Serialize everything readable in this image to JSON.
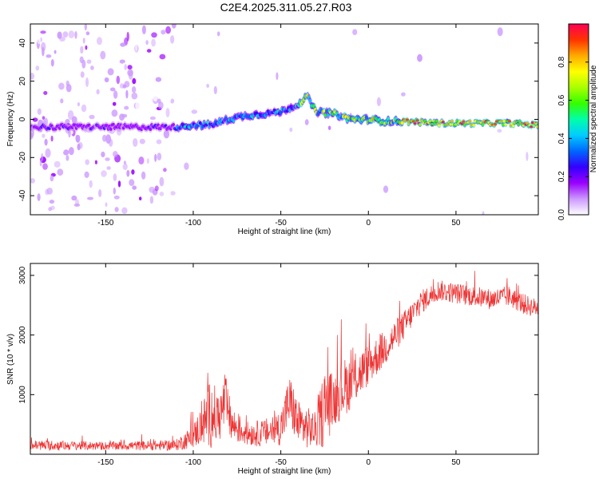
{
  "figure_title": "C2E4.2025.311.05.27.R03",
  "chart_data": [
    {
      "type": "heatmap",
      "title": "C2E4.2025.311.05.27.R03",
      "xlabel": "Height of straight line (km)",
      "ylabel": "Frequency (Hz)",
      "xlim": [
        -193,
        97
      ],
      "ylim": [
        -50,
        50
      ],
      "xticks": [
        -150,
        -100,
        -50,
        0,
        50
      ],
      "yticks": [
        -40,
        -20,
        0,
        20,
        40
      ],
      "colorbar": {
        "label": "Normalized spectral amplitude",
        "range": [
          0,
          1
        ],
        "ticks": [
          0.0,
          0.2,
          0.4,
          0.6,
          0.8
        ],
        "colormap": "rainbow",
        "colors": [
          "#ffffff",
          "#cc99ff",
          "#9900ff",
          "#3300ff",
          "#0066ff",
          "#00ccff",
          "#00ffaa",
          "#33ff00",
          "#aaff00",
          "#ffff00",
          "#ffaa00",
          "#ff3300",
          "#ff0055"
        ]
      },
      "ridge": [
        {
          "x": -193,
          "f": -4
        },
        {
          "x": -150,
          "f": -4
        },
        {
          "x": -110,
          "f": -4
        },
        {
          "x": -100,
          "f": -3
        },
        {
          "x": -90,
          "f": -3
        },
        {
          "x": -80,
          "f": 0
        },
        {
          "x": -70,
          "f": 2
        },
        {
          "x": -60,
          "f": 3
        },
        {
          "x": -50,
          "f": 4
        },
        {
          "x": -40,
          "f": 8
        },
        {
          "x": -35,
          "f": 12
        },
        {
          "x": -30,
          "f": 4
        },
        {
          "x": -20,
          "f": 3
        },
        {
          "x": -10,
          "f": 0
        },
        {
          "x": 0,
          "f": 0
        },
        {
          "x": 10,
          "f": -1
        },
        {
          "x": 20,
          "f": -1
        },
        {
          "x": 40,
          "f": -2
        },
        {
          "x": 60,
          "f": -2
        },
        {
          "x": 80,
          "f": -2
        },
        {
          "x": 97,
          "f": -3
        }
      ]
    },
    {
      "type": "line",
      "xlabel": "Height of straight line (km)",
      "ylabel": "SNR (10 * v/v)",
      "xlim": [
        -193,
        97
      ],
      "ylim": [
        0,
        3200
      ],
      "xticks": [
        -150,
        -100,
        -50,
        0,
        50
      ],
      "yticks": [
        1000,
        2000,
        3000
      ],
      "series": [
        {
          "name": "SNR",
          "color": "#ee3333",
          "envelope": [
            {
              "x": -193,
              "base": 150,
              "amp": 180
            },
            {
              "x": -150,
              "base": 140,
              "amp": 140
            },
            {
              "x": -110,
              "base": 150,
              "amp": 180
            },
            {
              "x": -100,
              "base": 300,
              "amp": 400
            },
            {
              "x": -95,
              "base": 500,
              "amp": 700
            },
            {
              "x": -90,
              "base": 700,
              "amp": 1200
            },
            {
              "x": -85,
              "base": 600,
              "amp": 800
            },
            {
              "x": -82,
              "base": 900,
              "amp": 1000
            },
            {
              "x": -78,
              "base": 500,
              "amp": 600
            },
            {
              "x": -70,
              "base": 350,
              "amp": 400
            },
            {
              "x": -60,
              "base": 350,
              "amp": 450
            },
            {
              "x": -50,
              "base": 450,
              "amp": 600
            },
            {
              "x": -45,
              "base": 900,
              "amp": 900
            },
            {
              "x": -40,
              "base": 500,
              "amp": 800
            },
            {
              "x": -30,
              "base": 400,
              "amp": 600
            },
            {
              "x": -25,
              "base": 800,
              "amp": 1400
            },
            {
              "x": -20,
              "base": 900,
              "amp": 900
            },
            {
              "x": -15,
              "base": 1100,
              "amp": 1000
            },
            {
              "x": -10,
              "base": 1200,
              "amp": 900
            },
            {
              "x": 0,
              "base": 1500,
              "amp": 700
            },
            {
              "x": 10,
              "base": 1800,
              "amp": 600
            },
            {
              "x": 20,
              "base": 2150,
              "amp": 500
            },
            {
              "x": 30,
              "base": 2550,
              "amp": 400
            },
            {
              "x": 40,
              "base": 2750,
              "amp": 350
            },
            {
              "x": 50,
              "base": 2700,
              "amp": 350
            },
            {
              "x": 60,
              "base": 2650,
              "amp": 350
            },
            {
              "x": 70,
              "base": 2600,
              "amp": 350
            },
            {
              "x": 80,
              "base": 2650,
              "amp": 350
            },
            {
              "x": 90,
              "base": 2500,
              "amp": 350
            },
            {
              "x": 97,
              "base": 2450,
              "amp": 300
            }
          ]
        }
      ]
    }
  ]
}
